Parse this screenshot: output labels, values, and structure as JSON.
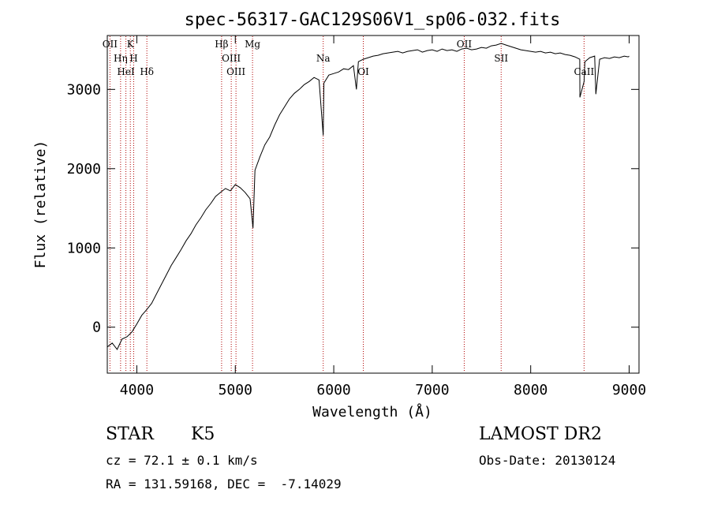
{
  "chart_data": {
    "type": "line",
    "title": "spec-56317-GAC129S06V1_sp06-032.fits",
    "xlabel": "Wavelength (Å)",
    "ylabel": "Flux (relative)",
    "xlim": [
      3700,
      9100
    ],
    "ylim": [
      -580,
      3680
    ],
    "grid": false,
    "xticks": [
      4000,
      5000,
      6000,
      7000,
      8000,
      9000
    ],
    "yticks": [
      0,
      1000,
      2000,
      3000
    ],
    "series": [
      {
        "x": [
          3700,
          3750,
          3800,
          3850,
          3900,
          3950,
          4000,
          4050,
          4100,
          4150,
          4200,
          4250,
          4300,
          4350,
          4400,
          4450,
          4500,
          4550,
          4600,
          4650,
          4700,
          4750,
          4800,
          4850,
          4900,
          4950,
          5000,
          5050,
          5100,
          5150,
          5180,
          5200,
          5250,
          5300,
          5350,
          5400,
          5450,
          5500,
          5550,
          5600,
          5650,
          5700,
          5750,
          5800,
          5850,
          5893,
          5900,
          5950,
          6000,
          6050,
          6100,
          6150,
          6200,
          6230,
          6250,
          6300,
          6350,
          6400,
          6450,
          6500,
          6550,
          6600,
          6650,
          6700,
          6750,
          6800,
          6850,
          6900,
          6950,
          7000,
          7050,
          7100,
          7150,
          7200,
          7250,
          7300,
          7350,
          7400,
          7450,
          7500,
          7550,
          7600,
          7650,
          7700,
          7750,
          7800,
          7850,
          7900,
          7950,
          8000,
          8050,
          8100,
          8150,
          8200,
          8250,
          8300,
          8350,
          8400,
          8450,
          8498,
          8500,
          8542,
          8550,
          8600,
          8650,
          8662,
          8700,
          8750,
          8800,
          8850,
          8900,
          8950,
          8990,
          9000
        ],
        "y": [
          -250,
          -200,
          -280,
          -150,
          -120,
          -60,
          40,
          150,
          220,
          300,
          420,
          540,
          660,
          780,
          880,
          980,
          1090,
          1180,
          1290,
          1380,
          1480,
          1560,
          1650,
          1700,
          1750,
          1720,
          1800,
          1760,
          1700,
          1620,
          1250,
          1980,
          2150,
          2300,
          2400,
          2550,
          2680,
          2780,
          2880,
          2950,
          3000,
          3060,
          3100,
          3150,
          3120,
          2420,
          3080,
          3180,
          3200,
          3220,
          3260,
          3250,
          3300,
          3000,
          3350,
          3380,
          3400,
          3420,
          3430,
          3450,
          3460,
          3470,
          3480,
          3460,
          3480,
          3490,
          3500,
          3470,
          3490,
          3500,
          3480,
          3510,
          3490,
          3500,
          3480,
          3510,
          3520,
          3500,
          3510,
          3530,
          3520,
          3550,
          3560,
          3580,
          3560,
          3540,
          3520,
          3500,
          3490,
          3480,
          3470,
          3480,
          3460,
          3470,
          3450,
          3460,
          3440,
          3430,
          3410,
          3380,
          2900,
          3100,
          3350,
          3400,
          3420,
          2940,
          3380,
          3400,
          3390,
          3410,
          3400,
          3420,
          3410,
          3420
        ]
      }
    ],
    "lines": [
      {
        "name": "OII",
        "x": 3727
      },
      {
        "name": "Hη",
        "x": 3835
      },
      {
        "name": "HeI",
        "x": 3889
      },
      {
        "name": "K",
        "x": 3934
      },
      {
        "name": "H",
        "x": 3968
      },
      {
        "name": "Hδ",
        "x": 4102
      },
      {
        "name": "Hβ",
        "x": 4861
      },
      {
        "name": "OIII",
        "x": 4959
      },
      {
        "name": "OIII",
        "x": 5007
      },
      {
        "name": "Mg",
        "x": 5175
      },
      {
        "name": "Na",
        "x": 5893
      },
      {
        "name": "OI",
        "x": 6300
      },
      {
        "name": "OII",
        "x": 7325
      },
      {
        "name": "SII",
        "x": 7700
      },
      {
        "name": "CaII",
        "x": 8542
      }
    ]
  },
  "labels": {
    "object": "STAR",
    "subclass": "K5",
    "cz": "cz = 72.1 ± 0.1 km/s",
    "radec": "RA = 131.59168, DEC =  -7.14029",
    "survey": "LAMOST DR2",
    "obsdate": "Obs-Date: 20130124"
  },
  "colors": {
    "line": "#000000",
    "marker": "#b00000"
  }
}
